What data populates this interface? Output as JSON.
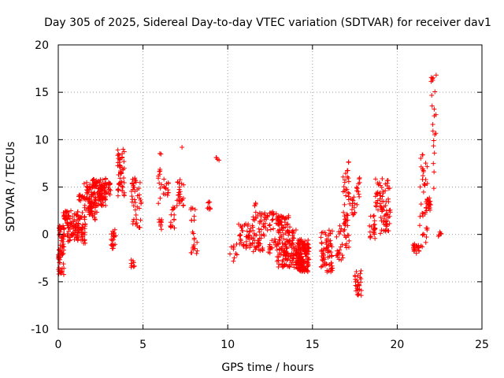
{
  "chart_data": {
    "type": "scatter",
    "title": "Day 305 of 2025, Sidereal Day-to-day VTEC variation (SDTVAR) for receiver dav1",
    "xlabel": "GPS time / hours",
    "ylabel": "SDTVAR / TECUs",
    "xlim": [
      0,
      25
    ],
    "ylim": [
      -10,
      20
    ],
    "xticks": [
      "0",
      "5",
      "10",
      "15",
      "20",
      "25"
    ],
    "yticks": [
      "-10",
      "-5",
      "0",
      "5",
      "10",
      "15",
      "20"
    ],
    "grid": true,
    "marker": "+",
    "color": "#ff0000",
    "clusters": [
      {
        "x": [
          0.0,
          0.35
        ],
        "y": [
          -4.5,
          1.0
        ],
        "n": 70
      },
      {
        "x": [
          0.3,
          0.6
        ],
        "y": [
          1.5,
          2.5
        ],
        "n": 20
      },
      {
        "x": [
          0.5,
          1.6
        ],
        "y": [
          -1.0,
          2.5
        ],
        "n": 110
      },
      {
        "x": [
          1.2,
          1.5
        ],
        "y": [
          3.5,
          4.2
        ],
        "n": 12
      },
      {
        "x": [
          1.5,
          2.0
        ],
        "y": [
          2.5,
          5.5
        ],
        "n": 45
      },
      {
        "x": [
          1.8,
          2.3
        ],
        "y": [
          1.5,
          3.5
        ],
        "n": 30
      },
      {
        "x": [
          2.0,
          2.8
        ],
        "y": [
          3.0,
          6.0
        ],
        "n": 110
      },
      {
        "x": [
          2.7,
          3.1
        ],
        "y": [
          4.0,
          5.5
        ],
        "n": 15
      },
      {
        "x": [
          3.1,
          3.4
        ],
        "y": [
          -1.5,
          0.5
        ],
        "n": 22
      },
      {
        "x": [
          3.5,
          3.9
        ],
        "y": [
          4.0,
          9.0
        ],
        "n": 50
      },
      {
        "x": [
          4.3,
          4.5
        ],
        "y": [
          -3.5,
          -2.5
        ],
        "n": 8
      },
      {
        "x": [
          4.3,
          4.9
        ],
        "y": [
          0.5,
          6.0
        ],
        "n": 45
      },
      {
        "x": [
          5.9,
          6.1
        ],
        "y": [
          0.5,
          9.5
        ],
        "n": 22
      },
      {
        "x": [
          6.2,
          6.5
        ],
        "y": [
          4.0,
          6.0
        ],
        "n": 14
      },
      {
        "x": [
          6.6,
          6.9
        ],
        "y": [
          0.5,
          3.0
        ],
        "n": 14
      },
      {
        "x": [
          7.0,
          7.4
        ],
        "y": [
          3.0,
          6.0
        ],
        "n": 25
      },
      {
        "x": [
          7.3,
          7.3
        ],
        "y": [
          9.2,
          9.2
        ],
        "n": 1
      },
      {
        "x": [
          7.8,
          8.2
        ],
        "y": [
          -2.5,
          3.0
        ],
        "n": 22
      },
      {
        "x": [
          8.8,
          9.0
        ],
        "y": [
          2.5,
          3.5
        ],
        "n": 8
      },
      {
        "x": [
          9.3,
          9.5
        ],
        "y": [
          7.8,
          8.2
        ],
        "n": 4
      },
      {
        "x": [
          10.1,
          10.6
        ],
        "y": [
          -3.5,
          -1.0
        ],
        "n": 10
      },
      {
        "x": [
          10.6,
          11.5
        ],
        "y": [
          -1.5,
          1.5
        ],
        "n": 45
      },
      {
        "x": [
          11.5,
          11.8
        ],
        "y": [
          -2.0,
          3.5
        ],
        "n": 25
      },
      {
        "x": [
          11.8,
          12.9
        ],
        "y": [
          -2.0,
          2.5
        ],
        "n": 70
      },
      {
        "x": [
          12.9,
          13.7
        ],
        "y": [
          -3.5,
          2.0
        ],
        "n": 130
      },
      {
        "x": [
          13.7,
          14.1
        ],
        "y": [
          -3.5,
          0.5
        ],
        "n": 40
      },
      {
        "x": [
          14.1,
          14.8
        ],
        "y": [
          -4.0,
          -0.5
        ],
        "n": 160
      },
      {
        "x": [
          15.5,
          16.2
        ],
        "y": [
          -4.0,
          0.5
        ],
        "n": 70
      },
      {
        "x": [
          16.4,
          16.9
        ],
        "y": [
          -3.0,
          1.0
        ],
        "n": 20
      },
      {
        "x": [
          16.8,
          17.2
        ],
        "y": [
          -1.5,
          8.0
        ],
        "n": 50
      },
      {
        "x": [
          17.2,
          17.5
        ],
        "y": [
          2.0,
          4.0
        ],
        "n": 14
      },
      {
        "x": [
          17.5,
          17.9
        ],
        "y": [
          -6.5,
          -3.8
        ],
        "n": 30
      },
      {
        "x": [
          17.6,
          17.8
        ],
        "y": [
          3.0,
          6.5
        ],
        "n": 12
      },
      {
        "x": [
          18.3,
          18.7
        ],
        "y": [
          -0.5,
          2.0
        ],
        "n": 22
      },
      {
        "x": [
          18.7,
          19.0
        ],
        "y": [
          2.5,
          6.0
        ],
        "n": 18
      },
      {
        "x": [
          19.0,
          19.6
        ],
        "y": [
          0.0,
          6.0
        ],
        "n": 60
      },
      {
        "x": [
          20.9,
          21.3
        ],
        "y": [
          -2.0,
          -1.0
        ],
        "n": 22
      },
      {
        "x": [
          21.3,
          21.8
        ],
        "y": [
          -1.5,
          9.0
        ],
        "n": 40
      },
      {
        "x": [
          21.7,
          22.0
        ],
        "y": [
          2.5,
          4.0
        ],
        "n": 22
      },
      {
        "x": [
          22.0,
          22.3
        ],
        "y": [
          4.0,
          17.0
        ],
        "n": 22
      },
      {
        "x": [
          22.4,
          22.6
        ],
        "y": [
          -0.5,
          0.5
        ],
        "n": 6
      }
    ]
  }
}
